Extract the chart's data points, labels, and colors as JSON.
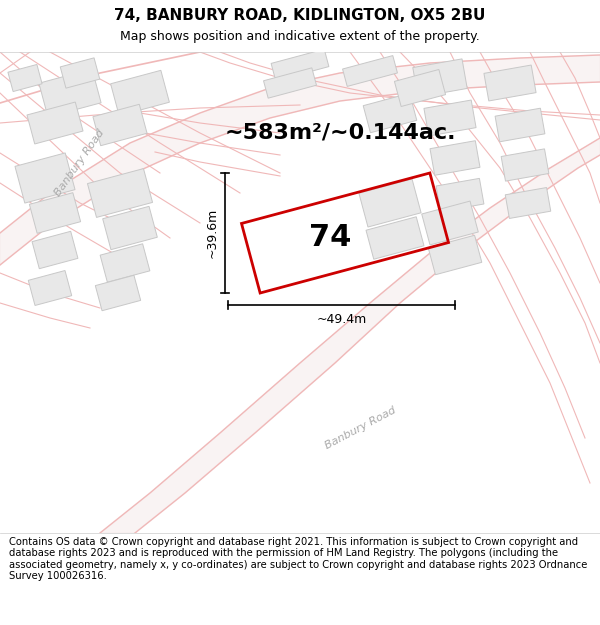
{
  "title_line1": "74, BANBURY ROAD, KIDLINGTON, OX5 2BU",
  "title_line2": "Map shows position and indicative extent of the property.",
  "area_text": "~583m²/~0.144ac.",
  "label_74": "74",
  "dim_width": "~49.4m",
  "dim_height": "~39.6m",
  "road_label1": "Banbury Road",
  "road_label2": "Banbury Road",
  "footer_text": "Contains OS data © Crown copyright and database right 2021. This information is subject to Crown copyright and database rights 2023 and is reproduced with the permission of HM Land Registry. The polygons (including the associated geometry, namely x, y co-ordinates) are subject to Crown copyright and database rights 2023 Ordnance Survey 100026316.",
  "bg_color": "#ffffff",
  "map_bg": "#f8f8f8",
  "road_line_color": "#f0b8b8",
  "road_fill_color": "#f5e8e8",
  "building_color": "#e8e8e8",
  "building_edge": "#c8c8c8",
  "plot_outline_color": "#cc0000",
  "dim_line_color": "#000000",
  "title_fontsize": 11,
  "subtitle_fontsize": 9,
  "area_fontsize": 16,
  "label_fontsize": 22,
  "dim_fontsize": 9,
  "footer_fontsize": 7.2,
  "road_label_color": "#aaaaaa",
  "road_label_fontsize": 8
}
